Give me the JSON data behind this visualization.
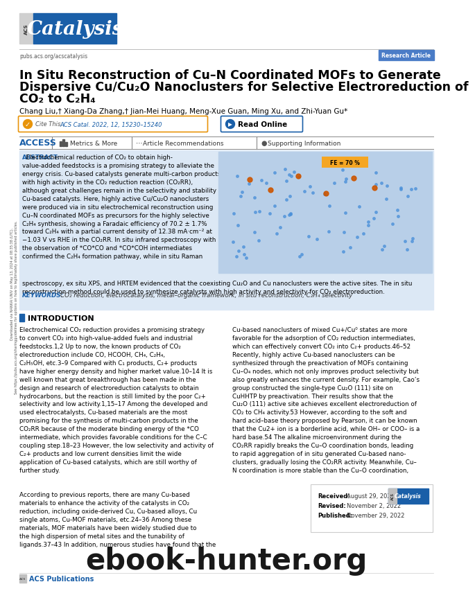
{
  "bg_color": "#ffffff",
  "journal_name": "Catalysis",
  "journal_bg": "#1a5fa8",
  "journal_text_color": "#ffffff",
  "url_text": "pubs.acs.org/acscatalysis",
  "research_article_text": "Research Article",
  "research_article_bg": "#4a7cc7",
  "title_line1": "In Situ Reconstruction of Cu–N Coordinated MOFs to Generate",
  "title_line2": "Dispersive Cu/Cu₂O Nanoclusters for Selective Electroreduction of",
  "title_line3": "CO₂ to C₂H₄",
  "authors": "Chang Liu,† Xiang-Da Zhang,† Jian-Mei Huang, Meng-Xue Guan, Ming Xu, and Zhi-Yuan Gu*",
  "cite_label": "Cite This: ",
  "cite_text": "ACS Catal. 2022, 12, 15230–15240",
  "cite_bg": "#e8940a",
  "read_online": "Read Online",
  "read_online_bg": "#1a5fa8",
  "access_text": "ACCESS",
  "metrics_text": "Metrics & More",
  "article_rec_text": "Article Recommendations",
  "supporting_text": "Supporting Information",
  "abstract_label": "ABSTRACT:",
  "abstract_color": "#1a5fa8",
  "abstract_bg": "#dce8f5",
  "keywords_label": "KEYWORDS:",
  "keywords_text": "CO₂ reduction, electrocatalysis, metal–organic framework, in situ reconstruction, C₂H₄ selectivity",
  "intro_title": "INTRODUCTION",
  "section_line_color": "#1a5fa8",
  "fe_label": "FE = 70 %",
  "fe_bg": "#f5a623",
  "received_label": "Received:",
  "received_date": "August 29, 2022",
  "revised_label": "Revised:",
  "revised_date": "November 2, 2022",
  "published_label": "Published:",
  "published_date": "November 29, 2022",
  "acs_pub_color": "#1a5fa8",
  "watermark_text": "ebook-hunter.org",
  "sidebar_line1": "Downloaded via NANKAI UNIV on May 13, 2024 at 08:35:38 (UTC).",
  "sidebar_line2": "See https://pubs.acs.org/sharingguidelines for options on how to legitimately share published articles."
}
